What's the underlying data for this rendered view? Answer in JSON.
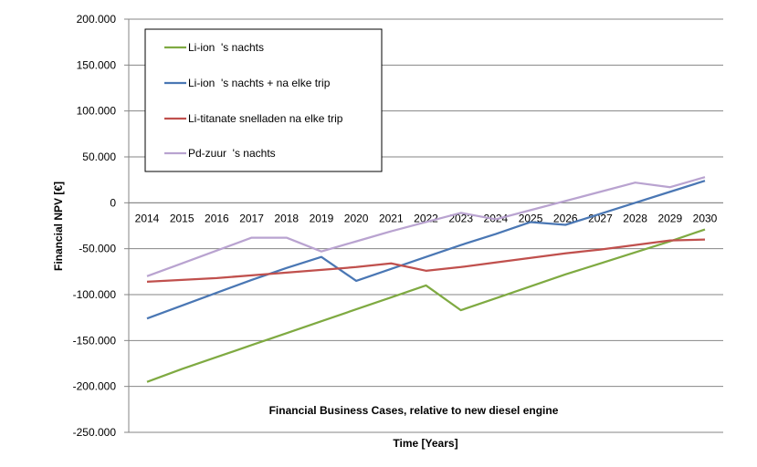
{
  "chart_data": {
    "type": "line",
    "title": "",
    "annotation": "Financial Business Cases, relative to new diesel engine",
    "xlabel": "Time [Years]",
    "ylabel": "Financial NPV [€]",
    "ylim": [
      -250000,
      200000
    ],
    "yticks": [
      200000,
      150000,
      100000,
      50000,
      0,
      -50000,
      -100000,
      -150000,
      -200000,
      -250000
    ],
    "ytick_labels": [
      "200.000",
      "150.000",
      "100.000",
      "50.000",
      "0",
      "-50.000",
      "-100.000",
      "-150.000",
      "-200.000",
      "-250.000"
    ],
    "x": [
      "2014",
      "2015",
      "2016",
      "2017",
      "2018",
      "2019",
      "2020",
      "2021",
      "2022",
      "2023",
      "2024",
      "2025",
      "2026",
      "2027",
      "2028",
      "2029",
      "2030"
    ],
    "grid": "horizontal",
    "legend_position": "top-left",
    "series": [
      {
        "name": "Li-ion  's nachts",
        "color": "#7faa42",
        "values": [
          -195000,
          -181000,
          -168000,
          -155000,
          -142000,
          -129000,
          -116000,
          -103000,
          -90000,
          -117000,
          -104000,
          -91000,
          -78000,
          -66000,
          -54000,
          -42000,
          -29000
        ]
      },
      {
        "name": "Li-ion  's nachts + na elke trip",
        "color": "#4a77b4",
        "values": [
          -126000,
          -112000,
          -98000,
          -84000,
          -71000,
          -59000,
          -85000,
          -72000,
          -59000,
          -46000,
          -34000,
          -21000,
          -24000,
          -12000,
          0,
          12000,
          24000
        ]
      },
      {
        "name": "Li-titanate snelladen na elke trip",
        "color": "#c0504d",
        "values": [
          -86000,
          -84000,
          -82000,
          -79000,
          -76000,
          -73000,
          -70000,
          -66000,
          -74000,
          -70000,
          -65000,
          -60000,
          -55000,
          -51000,
          -46000,
          -41000,
          -40000
        ]
      },
      {
        "name": "Pd-zuur  's nachts",
        "color": "#b9a3d0",
        "values": [
          -80000,
          -66000,
          -52000,
          -38000,
          -38000,
          -53000,
          -42000,
          -31000,
          -21000,
          -11000,
          -18000,
          -8000,
          2000,
          12000,
          22000,
          17000,
          28000
        ]
      }
    ]
  }
}
